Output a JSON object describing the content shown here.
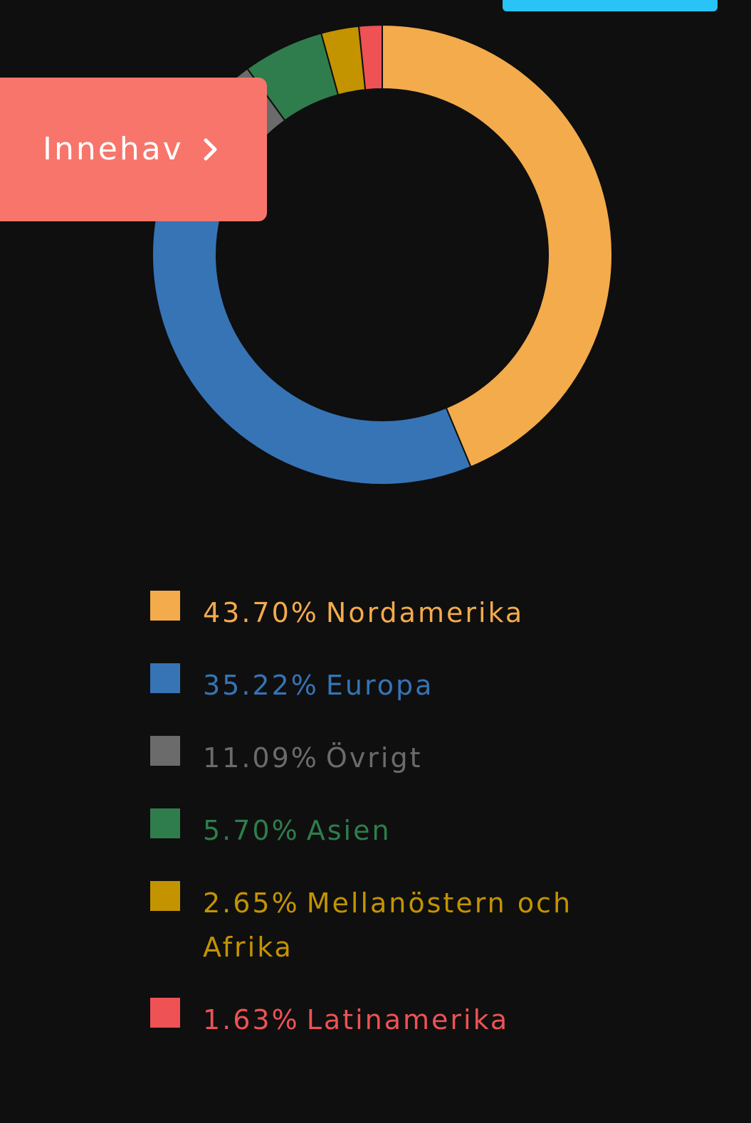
{
  "colors": {
    "background": "#0f0f0f",
    "top_tab": "#29c3f5",
    "button": "#f8756b",
    "slice_border": "#0f0f0f"
  },
  "innehav_button": {
    "label": "Innehav",
    "icon": "chevron-right-icon"
  },
  "chart_data": {
    "type": "pie",
    "variant": "donut",
    "start_angle_deg": 0,
    "direction": "clockwise",
    "slices": [
      {
        "label": "Nordamerika",
        "value": 43.7,
        "display": "43.70%",
        "color": "#f3ab4c"
      },
      {
        "label": "Europa",
        "value": 35.22,
        "display": "35.22%",
        "color": "#3674b5"
      },
      {
        "label": "Övrigt",
        "value": 11.09,
        "display": "11.09%",
        "color": "#6b6b6b"
      },
      {
        "label": "Asien",
        "value": 5.7,
        "display": "5.70%",
        "color": "#2f7d4c"
      },
      {
        "label": "Mellanöstern och Afrika",
        "value": 2.65,
        "display": "2.65%",
        "color": "#c39400"
      },
      {
        "label": "Latinamerika",
        "value": 1.63,
        "display": "1.63%",
        "color": "#ee5254"
      }
    ],
    "legend_position": "bottom"
  }
}
